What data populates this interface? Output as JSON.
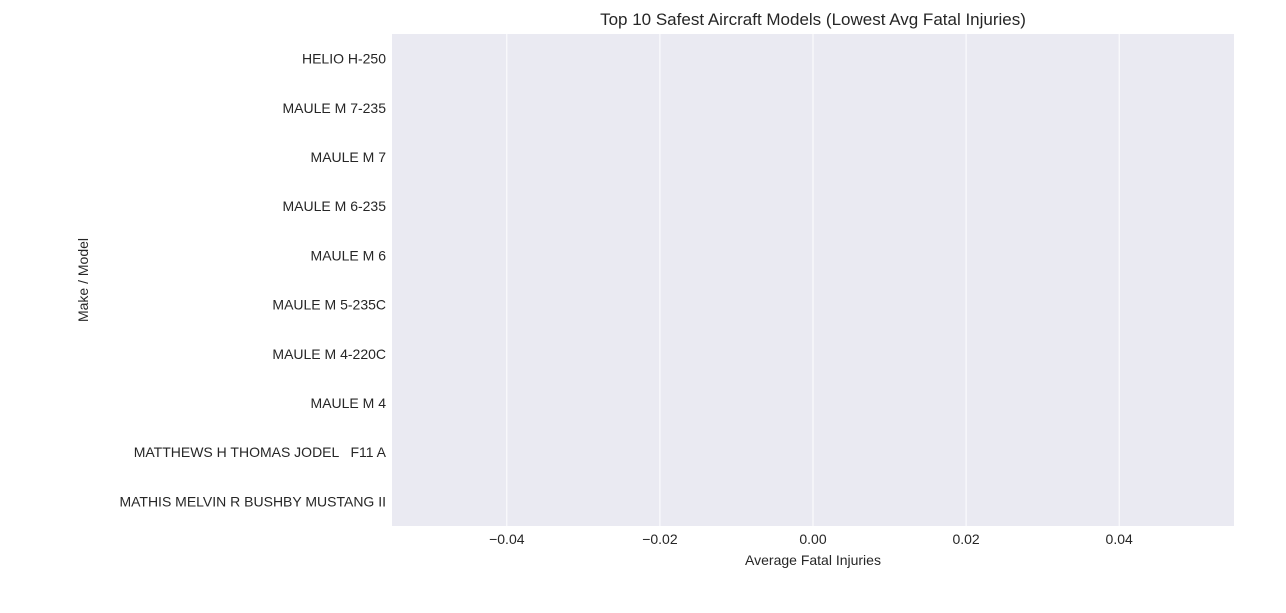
{
  "chart_data": {
    "type": "bar",
    "orientation": "horizontal",
    "title": "Top 10 Safest Aircraft Models (Lowest Avg Fatal Injuries)",
    "xlabel": "Average Fatal Injuries",
    "ylabel": "Make / Model",
    "categories": [
      "HELIO H-250",
      "MAULE M 7-235",
      "MAULE M 7",
      "MAULE M 6-235",
      "MAULE M 6",
      "MAULE M 5-235C",
      "MAULE M 4-220C",
      "MAULE M 4",
      "MATTHEWS H THOMAS JODEL   F11 A",
      "MATHIS MELVIN R BUSHBY MUSTANG II"
    ],
    "values": [
      0,
      0,
      0,
      0,
      0,
      0,
      0,
      0,
      0,
      0
    ],
    "xlim": [
      -0.055,
      0.055
    ],
    "xticks": [
      -0.04,
      -0.02,
      0.0,
      0.02,
      0.04
    ],
    "xtick_labels": [
      "−0.04",
      "−0.02",
      "0.00",
      "0.02",
      "0.04"
    ],
    "grid": "vertical",
    "legend": "none",
    "colors": {
      "plot_background": "#eaeaf2",
      "grid": "#ffffff",
      "text": "#262626"
    }
  }
}
